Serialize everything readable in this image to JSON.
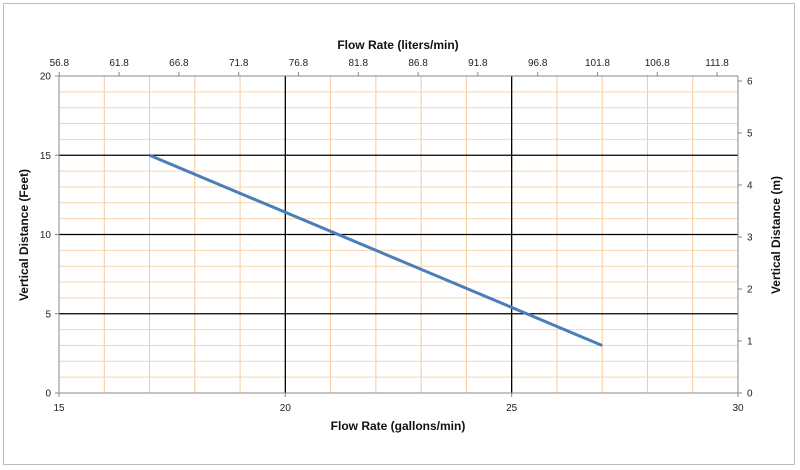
{
  "chart_data": {
    "type": "line",
    "x_bottom": {
      "label": "Flow Rate (gallons/min)",
      "range": [
        15,
        30
      ],
      "ticks": [
        "15",
        "20",
        "25",
        "30"
      ]
    },
    "x_top": {
      "label": "Flow Rate (liters/min)",
      "ticks": [
        "56.8",
        "61.8",
        "66.8",
        "71.8",
        "76.8",
        "81.8",
        "86.8",
        "91.8",
        "96.8",
        "101.8",
        "106.8",
        "111.8"
      ]
    },
    "y_left": {
      "label": "Vertical Distance (Feet)",
      "range": [
        0,
        20
      ],
      "ticks": [
        "0",
        "5",
        "10",
        "15",
        "20"
      ]
    },
    "y_right": {
      "label": "Vertical Distance (m)",
      "range": [
        0,
        6.096
      ],
      "ticks": [
        "0",
        "1",
        "2",
        "3",
        "4",
        "5",
        "6"
      ]
    },
    "series": [
      {
        "x": [
          17,
          27
        ],
        "y": [
          15,
          3
        ],
        "color": "#4a7ebb"
      }
    ],
    "grid": true,
    "major_grid_color": "#000000",
    "minor_grid_color_x": "#f7c99a",
    "minor_grid_color_y": "#f7d4b0"
  }
}
